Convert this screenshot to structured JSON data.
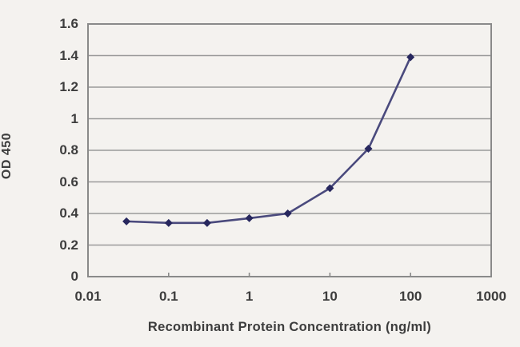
{
  "chart_data": {
    "type": "line",
    "title": "",
    "xlabel": "Recombinant Protein Concentration (ng/ml)",
    "ylabel": "OD 450",
    "x_scale": "log",
    "x": [
      0.03,
      0.1,
      0.3,
      1,
      3,
      10,
      30,
      100
    ],
    "y": [
      0.35,
      0.34,
      0.34,
      0.37,
      0.4,
      0.56,
      0.81,
      1.39
    ],
    "xlim": [
      0.01,
      1000
    ],
    "ylim": [
      0,
      1.6
    ],
    "x_tick_values": [
      0.01,
      0.1,
      1,
      10,
      100,
      1000
    ],
    "x_tick_labels": [
      "0.01",
      "0.1",
      "1",
      "10",
      "100",
      "1000"
    ],
    "y_tick_values": [
      0,
      0.2,
      0.4,
      0.6,
      0.8,
      1,
      1.2,
      1.4,
      1.6
    ],
    "y_tick_labels": [
      "0",
      "0.2",
      "0.4",
      "0.6",
      "0.8",
      "1",
      "1.2",
      "1.4",
      "1.6"
    ],
    "grid": "horizontal",
    "legend": "none",
    "colors": {
      "line": "#4a4a7d",
      "marker": "#27275e",
      "grid": "#9a9a9a",
      "plot_border": "#8a8a8a",
      "text": "#3d3d3d",
      "background": "#f4f2ef"
    }
  }
}
